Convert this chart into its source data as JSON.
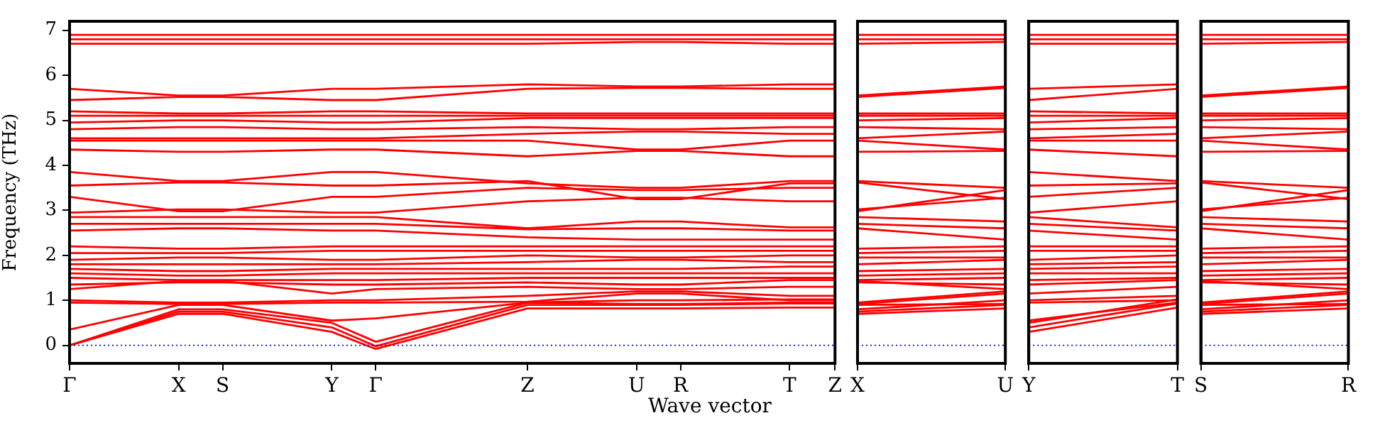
{
  "chart_data": [
    {
      "type": "line",
      "xlabel": "Wave vector",
      "ylabel": "Frequency (THz)",
      "categories": [
        "Γ",
        "X",
        "S",
        "Y",
        "Γ",
        "Z",
        "U",
        "R",
        "T",
        "Z"
      ],
      "ylim": [
        -0.4,
        7.2
      ],
      "yticks": [
        0,
        1,
        2,
        3,
        4,
        5,
        6,
        7
      ],
      "ref_lines": [
        {
          "axis": "y",
          "value": 0,
          "color": "#0000ff",
          "line_style": "dotted"
        }
      ],
      "series": [
        {
          "color": "#ff0000",
          "values": [
            6.9,
            6.9,
            6.9,
            6.9,
            6.9,
            6.9,
            6.9,
            6.9,
            6.9,
            6.9
          ]
        },
        {
          "color": "#ff0000",
          "values": [
            6.8,
            6.8,
            6.8,
            6.8,
            6.8,
            6.8,
            6.8,
            6.8,
            6.8,
            6.8
          ]
        },
        {
          "color": "#ff0000",
          "values": [
            6.7,
            6.7,
            6.7,
            6.7,
            6.7,
            6.7,
            6.74,
            6.74,
            6.7,
            6.7
          ]
        },
        {
          "color": "#ff0000",
          "values": [
            5.7,
            5.55,
            5.55,
            5.7,
            5.7,
            5.8,
            5.75,
            5.75,
            5.8,
            5.8
          ]
        },
        {
          "color": "#ff0000",
          "values": [
            5.45,
            5.52,
            5.52,
            5.45,
            5.45,
            5.7,
            5.72,
            5.72,
            5.7,
            5.7
          ]
        },
        {
          "color": "#ff0000",
          "values": [
            5.2,
            5.15,
            5.15,
            5.2,
            5.2,
            5.15,
            5.15,
            5.15,
            5.15,
            5.15
          ]
        },
        {
          "color": "#ff0000",
          "values": [
            5.1,
            5.1,
            5.1,
            5.1,
            5.1,
            5.1,
            5.1,
            5.1,
            5.1,
            5.1
          ]
        },
        {
          "color": "#ff0000",
          "values": [
            4.95,
            5.0,
            5.0,
            4.95,
            4.95,
            5.05,
            5.05,
            5.05,
            5.05,
            5.05
          ]
        },
        {
          "color": "#ff0000",
          "values": [
            4.8,
            4.85,
            4.85,
            4.8,
            4.8,
            4.85,
            4.8,
            4.8,
            4.85,
            4.85
          ]
        },
        {
          "color": "#ff0000",
          "values": [
            4.6,
            4.6,
            4.6,
            4.6,
            4.6,
            4.7,
            4.75,
            4.75,
            4.7,
            4.7
          ]
        },
        {
          "color": "#ff0000",
          "values": [
            4.55,
            4.55,
            4.55,
            4.55,
            4.55,
            4.55,
            4.35,
            4.35,
            4.55,
            4.55
          ]
        },
        {
          "color": "#ff0000",
          "values": [
            4.35,
            4.3,
            4.3,
            4.35,
            4.35,
            4.2,
            4.32,
            4.32,
            4.2,
            4.2
          ]
        },
        {
          "color": "#ff0000",
          "values": [
            3.85,
            3.65,
            3.65,
            3.85,
            3.85,
            3.6,
            3.5,
            3.5,
            3.65,
            3.65
          ]
        },
        {
          "color": "#ff0000",
          "values": [
            3.55,
            3.62,
            3.62,
            3.55,
            3.55,
            3.65,
            3.25,
            3.25,
            3.6,
            3.6
          ]
        },
        {
          "color": "#ff0000",
          "values": [
            3.3,
            2.98,
            2.98,
            3.3,
            3.3,
            3.5,
            3.45,
            3.45,
            3.5,
            3.5
          ]
        },
        {
          "color": "#ff0000",
          "values": [
            2.95,
            3.02,
            3.02,
            2.95,
            2.95,
            3.2,
            3.28,
            3.28,
            3.2,
            3.2
          ]
        },
        {
          "color": "#ff0000",
          "values": [
            2.85,
            2.85,
            2.85,
            2.85,
            2.85,
            2.6,
            2.75,
            2.75,
            2.62,
            2.62
          ]
        },
        {
          "color": "#ff0000",
          "values": [
            2.7,
            2.7,
            2.7,
            2.7,
            2.7,
            2.58,
            2.6,
            2.6,
            2.55,
            2.55
          ]
        },
        {
          "color": "#ff0000",
          "values": [
            2.55,
            2.6,
            2.6,
            2.55,
            2.55,
            2.4,
            2.35,
            2.35,
            2.35,
            2.35
          ]
        },
        {
          "color": "#ff0000",
          "values": [
            2.2,
            2.15,
            2.15,
            2.2,
            2.2,
            2.2,
            2.2,
            2.2,
            2.2,
            2.2
          ]
        },
        {
          "color": "#ff0000",
          "values": [
            2.05,
            2.05,
            2.05,
            2.1,
            2.1,
            2.1,
            2.1,
            2.1,
            2.1,
            2.1
          ]
        },
        {
          "color": "#ff0000",
          "values": [
            1.9,
            1.95,
            1.95,
            1.9,
            1.9,
            2.0,
            1.95,
            1.95,
            2.0,
            2.0
          ]
        },
        {
          "color": "#ff0000",
          "values": [
            1.8,
            1.8,
            1.8,
            1.8,
            1.8,
            1.85,
            1.9,
            1.9,
            1.85,
            1.85
          ]
        },
        {
          "color": "#ff0000",
          "values": [
            1.7,
            1.65,
            1.65,
            1.7,
            1.7,
            1.7,
            1.7,
            1.7,
            1.75,
            1.75
          ]
        },
        {
          "color": "#ff0000",
          "values": [
            1.6,
            1.55,
            1.55,
            1.6,
            1.6,
            1.6,
            1.6,
            1.6,
            1.6,
            1.6
          ]
        },
        {
          "color": "#ff0000",
          "values": [
            1.5,
            1.45,
            1.45,
            1.45,
            1.45,
            1.5,
            1.5,
            1.5,
            1.5,
            1.5
          ]
        },
        {
          "color": "#ff0000",
          "values": [
            1.35,
            1.4,
            1.4,
            1.35,
            1.35,
            1.4,
            1.35,
            1.35,
            1.45,
            1.45
          ]
        },
        {
          "color": "#ff0000",
          "values": [
            1.25,
            1.43,
            1.43,
            1.15,
            1.25,
            1.3,
            1.25,
            1.25,
            1.3,
            1.3
          ]
        },
        {
          "color": "#ff0000",
          "values": [
            1.0,
            0.95,
            0.95,
            1.0,
            1.0,
            1.1,
            1.2,
            1.2,
            1.1,
            1.1
          ]
        },
        {
          "color": "#ff0000",
          "values": [
            0.95,
            0.92,
            0.92,
            0.95,
            0.95,
            0.97,
            1.15,
            1.15,
            1.0,
            1.0
          ]
        },
        {
          "color": "#ff0000",
          "values": [
            0.35,
            0.9,
            0.9,
            0.55,
            0.6,
            0.95,
            0.92,
            0.92,
            0.95,
            0.95
          ]
        },
        {
          "color": "#ff0000",
          "values": [
            0,
            0.8,
            0.8,
            0.5,
            0.08,
            0.95,
            1.0,
            1.0,
            1.02,
            1.02
          ]
        },
        {
          "color": "#ff0000",
          "values": [
            0,
            0.75,
            0.75,
            0.4,
            -0.02,
            0.9,
            0.9,
            0.9,
            0.93,
            0.93
          ]
        },
        {
          "color": "#ff0000",
          "values": [
            0,
            0.7,
            0.7,
            0.3,
            -0.08,
            0.82,
            0.82,
            0.82,
            0.84,
            0.84
          ]
        }
      ]
    },
    {
      "type": "line",
      "categories": [
        "X",
        "U"
      ],
      "ylim": [
        -0.4,
        7.2
      ],
      "yticks": [
        0,
        1,
        2,
        3,
        4,
        5,
        6,
        7
      ],
      "tick_labels": "x",
      "ref_lines": [
        {
          "axis": "y",
          "value": 0,
          "color": "#0000ff",
          "line_style": "dotted"
        }
      ],
      "series": [
        {
          "color": "#ff0000",
          "values": [
            6.9,
            6.9
          ]
        },
        {
          "color": "#ff0000",
          "values": [
            6.8,
            6.8
          ]
        },
        {
          "color": "#ff0000",
          "values": [
            6.7,
            6.74
          ]
        },
        {
          "color": "#ff0000",
          "values": [
            5.55,
            5.75
          ]
        },
        {
          "color": "#ff0000",
          "values": [
            5.52,
            5.72
          ]
        },
        {
          "color": "#ff0000",
          "values": [
            5.15,
            5.15
          ]
        },
        {
          "color": "#ff0000",
          "values": [
            5.1,
            5.1
          ]
        },
        {
          "color": "#ff0000",
          "values": [
            5.0,
            5.05
          ]
        },
        {
          "color": "#ff0000",
          "values": [
            4.85,
            4.8
          ]
        },
        {
          "color": "#ff0000",
          "values": [
            4.6,
            4.75
          ]
        },
        {
          "color": "#ff0000",
          "values": [
            4.55,
            4.35
          ]
        },
        {
          "color": "#ff0000",
          "values": [
            4.3,
            4.32
          ]
        },
        {
          "color": "#ff0000",
          "values": [
            3.65,
            3.5
          ]
        },
        {
          "color": "#ff0000",
          "values": [
            3.62,
            3.25
          ]
        },
        {
          "color": "#ff0000",
          "values": [
            2.98,
            3.45
          ]
        },
        {
          "color": "#ff0000",
          "values": [
            3.02,
            3.28
          ]
        },
        {
          "color": "#ff0000",
          "values": [
            2.85,
            2.75
          ]
        },
        {
          "color": "#ff0000",
          "values": [
            2.7,
            2.6
          ]
        },
        {
          "color": "#ff0000",
          "values": [
            2.6,
            2.35
          ]
        },
        {
          "color": "#ff0000",
          "values": [
            2.15,
            2.2
          ]
        },
        {
          "color": "#ff0000",
          "values": [
            2.05,
            2.1
          ]
        },
        {
          "color": "#ff0000",
          "values": [
            1.95,
            1.95
          ]
        },
        {
          "color": "#ff0000",
          "values": [
            1.8,
            1.9
          ]
        },
        {
          "color": "#ff0000",
          "values": [
            1.65,
            1.7
          ]
        },
        {
          "color": "#ff0000",
          "values": [
            1.55,
            1.6
          ]
        },
        {
          "color": "#ff0000",
          "values": [
            1.45,
            1.5
          ]
        },
        {
          "color": "#ff0000",
          "values": [
            1.4,
            1.35
          ]
        },
        {
          "color": "#ff0000",
          "values": [
            1.43,
            1.25
          ]
        },
        {
          "color": "#ff0000",
          "values": [
            0.95,
            1.2
          ]
        },
        {
          "color": "#ff0000",
          "values": [
            0.92,
            1.15
          ]
        },
        {
          "color": "#ff0000",
          "values": [
            0.9,
            0.92
          ]
        },
        {
          "color": "#ff0000",
          "values": [
            0.8,
            1.0
          ]
        },
        {
          "color": "#ff0000",
          "values": [
            0.75,
            0.9
          ]
        },
        {
          "color": "#ff0000",
          "values": [
            0.7,
            0.82
          ]
        }
      ]
    },
    {
      "type": "line",
      "categories": [
        "Y",
        "T"
      ],
      "ylim": [
        -0.4,
        7.2
      ],
      "yticks": [
        0,
        1,
        2,
        3,
        4,
        5,
        6,
        7
      ],
      "tick_labels": "x",
      "ref_lines": [
        {
          "axis": "y",
          "value": 0,
          "color": "#0000ff",
          "line_style": "dotted"
        }
      ],
      "series": [
        {
          "color": "#ff0000",
          "values": [
            6.9,
            6.9
          ]
        },
        {
          "color": "#ff0000",
          "values": [
            6.8,
            6.8
          ]
        },
        {
          "color": "#ff0000",
          "values": [
            6.7,
            6.7
          ]
        },
        {
          "color": "#ff0000",
          "values": [
            5.7,
            5.8
          ]
        },
        {
          "color": "#ff0000",
          "values": [
            5.45,
            5.7
          ]
        },
        {
          "color": "#ff0000",
          "values": [
            5.2,
            5.15
          ]
        },
        {
          "color": "#ff0000",
          "values": [
            5.1,
            5.1
          ]
        },
        {
          "color": "#ff0000",
          "values": [
            4.95,
            5.05
          ]
        },
        {
          "color": "#ff0000",
          "values": [
            4.8,
            4.85
          ]
        },
        {
          "color": "#ff0000",
          "values": [
            4.6,
            4.7
          ]
        },
        {
          "color": "#ff0000",
          "values": [
            4.55,
            4.55
          ]
        },
        {
          "color": "#ff0000",
          "values": [
            4.35,
            4.2
          ]
        },
        {
          "color": "#ff0000",
          "values": [
            3.85,
            3.65
          ]
        },
        {
          "color": "#ff0000",
          "values": [
            3.55,
            3.6
          ]
        },
        {
          "color": "#ff0000",
          "values": [
            3.3,
            3.5
          ]
        },
        {
          "color": "#ff0000",
          "values": [
            2.95,
            3.2
          ]
        },
        {
          "color": "#ff0000",
          "values": [
            2.85,
            2.62
          ]
        },
        {
          "color": "#ff0000",
          "values": [
            2.7,
            2.55
          ]
        },
        {
          "color": "#ff0000",
          "values": [
            2.55,
            2.35
          ]
        },
        {
          "color": "#ff0000",
          "values": [
            2.2,
            2.2
          ]
        },
        {
          "color": "#ff0000",
          "values": [
            2.1,
            2.1
          ]
        },
        {
          "color": "#ff0000",
          "values": [
            1.9,
            2.0
          ]
        },
        {
          "color": "#ff0000",
          "values": [
            1.8,
            1.85
          ]
        },
        {
          "color": "#ff0000",
          "values": [
            1.7,
            1.75
          ]
        },
        {
          "color": "#ff0000",
          "values": [
            1.6,
            1.6
          ]
        },
        {
          "color": "#ff0000",
          "values": [
            1.45,
            1.5
          ]
        },
        {
          "color": "#ff0000",
          "values": [
            1.35,
            1.45
          ]
        },
        {
          "color": "#ff0000",
          "values": [
            1.15,
            1.3
          ]
        },
        {
          "color": "#ff0000",
          "values": [
            1.0,
            1.1
          ]
        },
        {
          "color": "#ff0000",
          "values": [
            0.95,
            1.0
          ]
        },
        {
          "color": "#ff0000",
          "values": [
            0.55,
            0.95
          ]
        },
        {
          "color": "#ff0000",
          "values": [
            0.5,
            1.02
          ]
        },
        {
          "color": "#ff0000",
          "values": [
            0.4,
            0.93
          ]
        },
        {
          "color": "#ff0000",
          "values": [
            0.3,
            0.84
          ]
        }
      ]
    },
    {
      "type": "line",
      "categories": [
        "S",
        "R"
      ],
      "ylim": [
        -0.4,
        7.2
      ],
      "yticks": [
        0,
        1,
        2,
        3,
        4,
        5,
        6,
        7
      ],
      "tick_labels": "x",
      "ref_lines": [
        {
          "axis": "y",
          "value": 0,
          "color": "#0000ff",
          "line_style": "dotted"
        }
      ],
      "series": [
        {
          "color": "#ff0000",
          "values": [
            6.9,
            6.9
          ]
        },
        {
          "color": "#ff0000",
          "values": [
            6.8,
            6.8
          ]
        },
        {
          "color": "#ff0000",
          "values": [
            6.7,
            6.74
          ]
        },
        {
          "color": "#ff0000",
          "values": [
            5.55,
            5.75
          ]
        },
        {
          "color": "#ff0000",
          "values": [
            5.52,
            5.72
          ]
        },
        {
          "color": "#ff0000",
          "values": [
            5.15,
            5.15
          ]
        },
        {
          "color": "#ff0000",
          "values": [
            5.1,
            5.1
          ]
        },
        {
          "color": "#ff0000",
          "values": [
            5.0,
            5.05
          ]
        },
        {
          "color": "#ff0000",
          "values": [
            4.85,
            4.8
          ]
        },
        {
          "color": "#ff0000",
          "values": [
            4.6,
            4.75
          ]
        },
        {
          "color": "#ff0000",
          "values": [
            4.55,
            4.35
          ]
        },
        {
          "color": "#ff0000",
          "values": [
            4.3,
            4.32
          ]
        },
        {
          "color": "#ff0000",
          "values": [
            3.65,
            3.5
          ]
        },
        {
          "color": "#ff0000",
          "values": [
            3.62,
            3.25
          ]
        },
        {
          "color": "#ff0000",
          "values": [
            2.98,
            3.45
          ]
        },
        {
          "color": "#ff0000",
          "values": [
            3.02,
            3.28
          ]
        },
        {
          "color": "#ff0000",
          "values": [
            2.85,
            2.75
          ]
        },
        {
          "color": "#ff0000",
          "values": [
            2.7,
            2.6
          ]
        },
        {
          "color": "#ff0000",
          "values": [
            2.6,
            2.35
          ]
        },
        {
          "color": "#ff0000",
          "values": [
            2.15,
            2.2
          ]
        },
        {
          "color": "#ff0000",
          "values": [
            2.05,
            2.1
          ]
        },
        {
          "color": "#ff0000",
          "values": [
            1.95,
            1.95
          ]
        },
        {
          "color": "#ff0000",
          "values": [
            1.8,
            1.9
          ]
        },
        {
          "color": "#ff0000",
          "values": [
            1.65,
            1.7
          ]
        },
        {
          "color": "#ff0000",
          "values": [
            1.55,
            1.6
          ]
        },
        {
          "color": "#ff0000",
          "values": [
            1.45,
            1.5
          ]
        },
        {
          "color": "#ff0000",
          "values": [
            1.4,
            1.35
          ]
        },
        {
          "color": "#ff0000",
          "values": [
            1.43,
            1.25
          ]
        },
        {
          "color": "#ff0000",
          "values": [
            0.95,
            1.2
          ]
        },
        {
          "color": "#ff0000",
          "values": [
            0.92,
            1.15
          ]
        },
        {
          "color": "#ff0000",
          "values": [
            0.9,
            0.92
          ]
        },
        {
          "color": "#ff0000",
          "values": [
            0.8,
            1.0
          ]
        },
        {
          "color": "#ff0000",
          "values": [
            0.75,
            0.9
          ]
        },
        {
          "color": "#ff0000",
          "values": [
            0.7,
            0.82
          ]
        }
      ]
    }
  ]
}
